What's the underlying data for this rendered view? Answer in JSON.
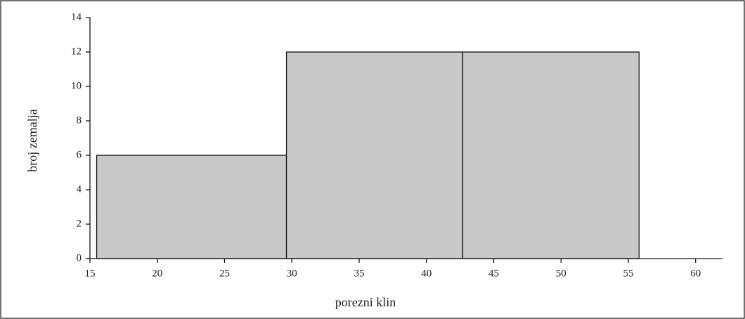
{
  "chart_data": {
    "type": "histogram",
    "x_label": "porezni klin",
    "y_label": "broj zemalja",
    "bins": [
      15.5,
      29.6,
      42.7,
      55.8
    ],
    "values": [
      6,
      12,
      12
    ],
    "color": "#c8c9cb",
    "xlim": [
      15,
      62
    ],
    "xticks": [
      15,
      20,
      25,
      30,
      35,
      40,
      45,
      50,
      55,
      60
    ],
    "ylim": [
      0,
      14
    ],
    "yticks": [
      0,
      2,
      4,
      6,
      8,
      10,
      12,
      14
    ]
  }
}
